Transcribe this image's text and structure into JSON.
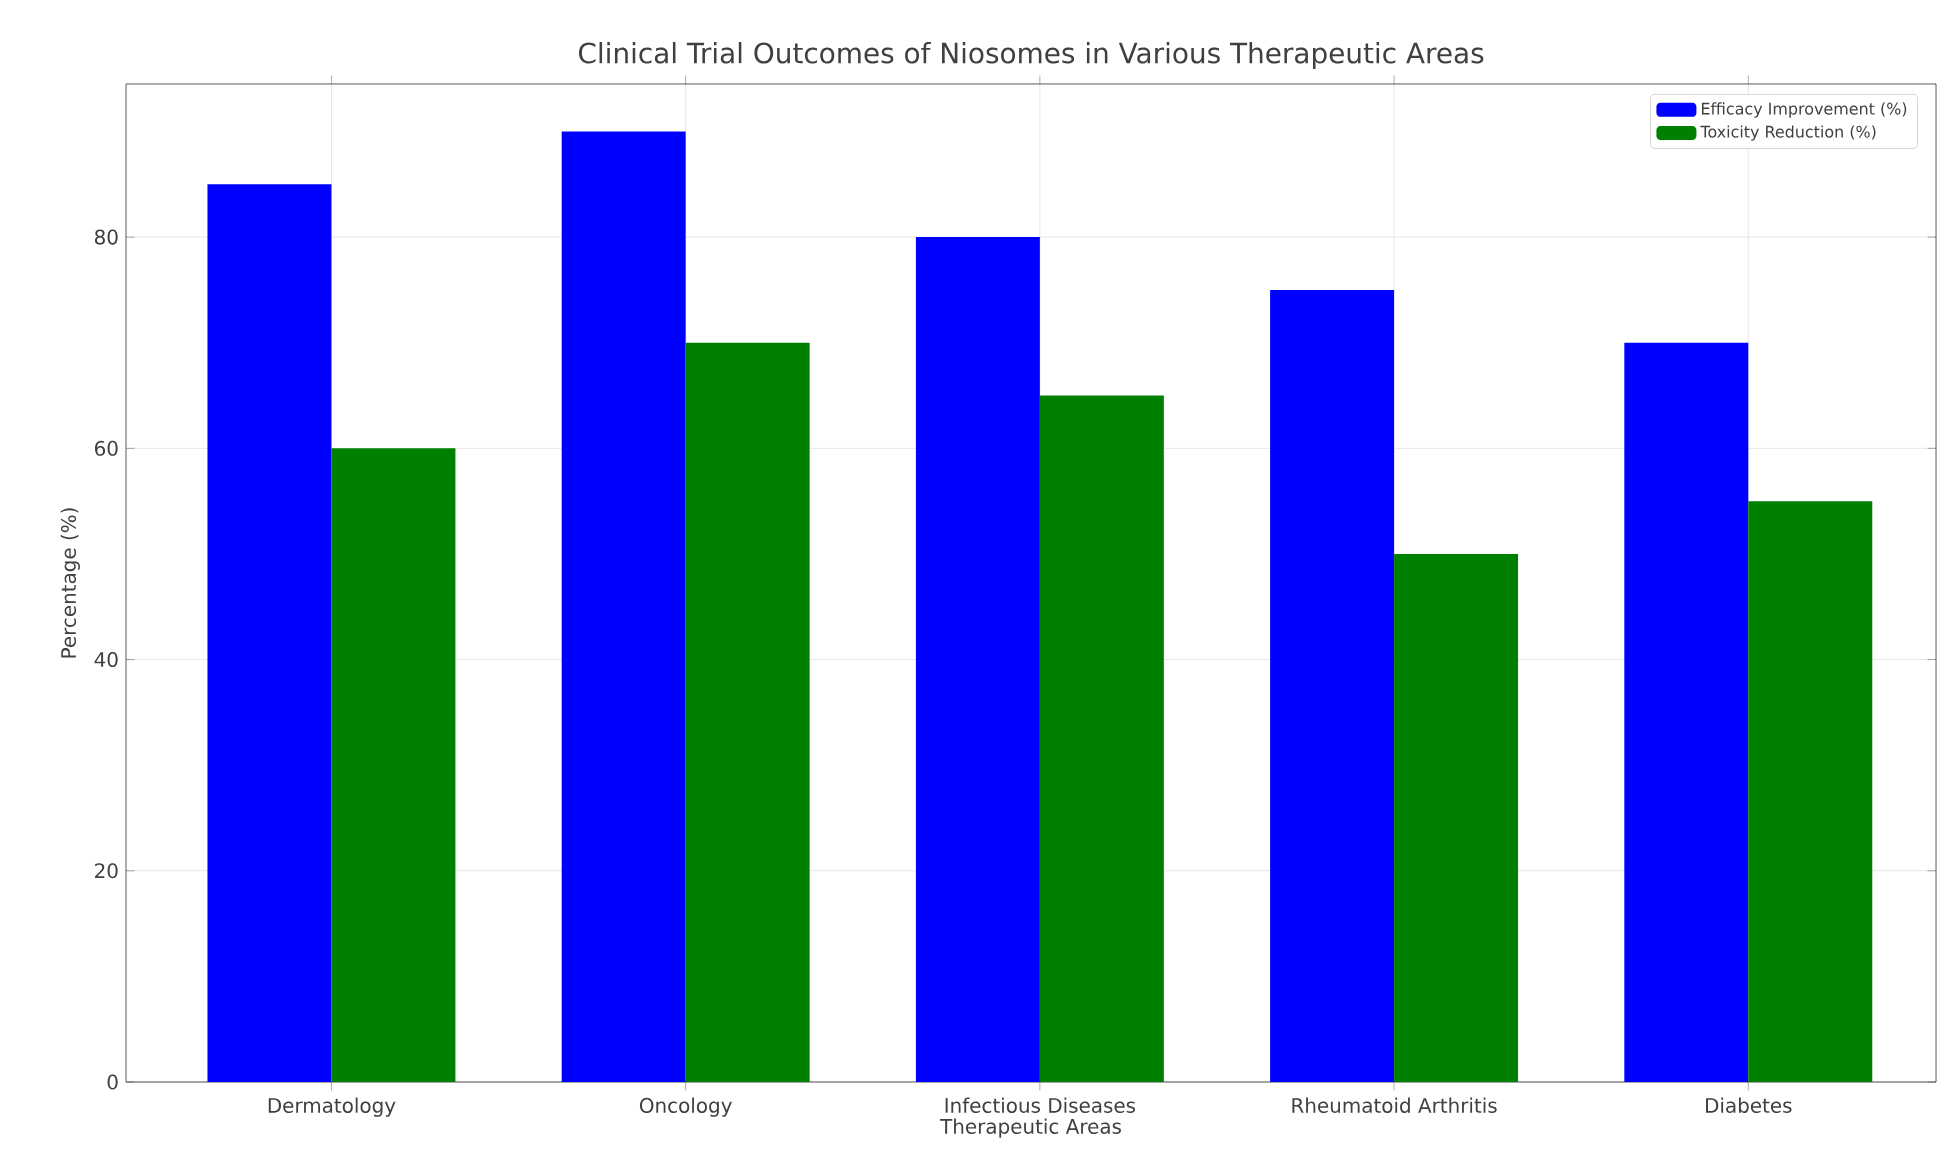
{
  "chart_data": {
    "type": "bar",
    "title": "Clinical Trial Outcomes of Niosomes in Various Therapeutic Areas",
    "xlabel": "Therapeutic Areas",
    "ylabel": "Percentage (%)",
    "categories": [
      "Dermatology",
      "Oncology",
      "Infectious Diseases",
      "Rheumatoid Arthritis",
      "Diabetes"
    ],
    "series": [
      {
        "name": "Efficacy Improvement (%)",
        "color": "#0000ff",
        "values": [
          85,
          90,
          80,
          75,
          70
        ]
      },
      {
        "name": "Toxicity Reduction (%)",
        "color": "#008000",
        "values": [
          60,
          70,
          65,
          50,
          55
        ]
      }
    ],
    "ylim": [
      0,
      94.5
    ],
    "yticks": [
      0,
      20,
      40,
      60,
      80
    ],
    "grid": true,
    "legend": "top right"
  }
}
